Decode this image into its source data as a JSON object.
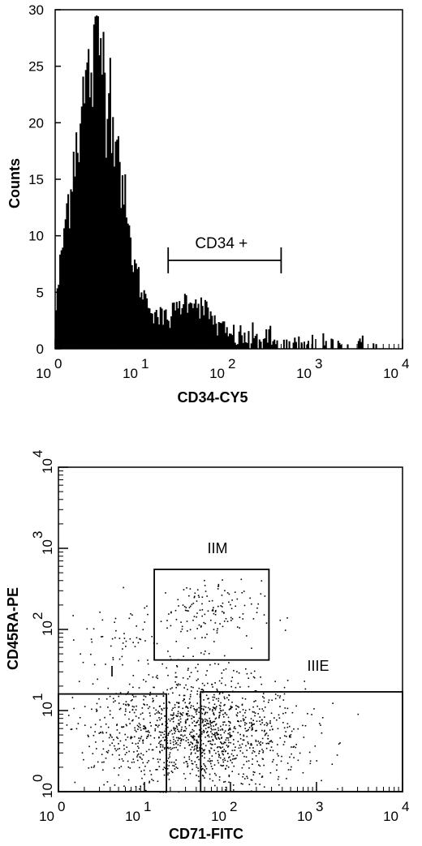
{
  "chart_data": [
    {
      "type": "histogram",
      "xlabel": "CD34-CY5",
      "ylabel": "Counts",
      "xscale": "log",
      "xlim": [
        1,
        10000
      ],
      "ylim": [
        0,
        30
      ],
      "xticks": [
        {
          "base": "10",
          "exp": "0"
        },
        {
          "base": "10",
          "exp": "1"
        },
        {
          "base": "10",
          "exp": "2"
        },
        {
          "base": "10",
          "exp": "3"
        },
        {
          "base": "10",
          "exp": "4"
        }
      ],
      "yticks": [
        "0",
        "5",
        "10",
        "15",
        "20",
        "25",
        "30"
      ],
      "histogram_profile": [
        {
          "x": 1.0,
          "y": 3
        },
        {
          "x": 1.2,
          "y": 9
        },
        {
          "x": 1.45,
          "y": 14
        },
        {
          "x": 1.7,
          "y": 18
        },
        {
          "x": 2.0,
          "y": 21
        },
        {
          "x": 2.4,
          "y": 24
        },
        {
          "x": 2.8,
          "y": 25
        },
        {
          "x": 3.2,
          "y": 27
        },
        {
          "x": 3.6,
          "y": 26
        },
        {
          "x": 4.2,
          "y": 23
        },
        {
          "x": 5.0,
          "y": 20
        },
        {
          "x": 6.0,
          "y": 14
        },
        {
          "x": 7.0,
          "y": 10
        },
        {
          "x": 8.5,
          "y": 7
        },
        {
          "x": 10,
          "y": 5
        },
        {
          "x": 12,
          "y": 4
        },
        {
          "x": 15,
          "y": 3
        },
        {
          "x": 18,
          "y": 2.5
        },
        {
          "x": 22,
          "y": 3
        },
        {
          "x": 28,
          "y": 4
        },
        {
          "x": 35,
          "y": 4.5
        },
        {
          "x": 45,
          "y": 4
        },
        {
          "x": 60,
          "y": 3
        },
        {
          "x": 75,
          "y": 2
        },
        {
          "x": 100,
          "y": 1.2
        },
        {
          "x": 140,
          "y": 1
        },
        {
          "x": 200,
          "y": 0.8
        },
        {
          "x": 260,
          "y": 1
        },
        {
          "x": 330,
          "y": 0.6
        },
        {
          "x": 400,
          "y": 0.1
        },
        {
          "x": 10000,
          "y": 0
        }
      ],
      "gate": {
        "label": "CD34 +",
        "x_start": 20,
        "x_end": 400
      }
    },
    {
      "type": "scatter",
      "xlabel": "CD71-FITC",
      "ylabel": "CD45RA-PE",
      "xscale": "log",
      "yscale": "log",
      "xlim": [
        1,
        10000
      ],
      "ylim": [
        1,
        10000
      ],
      "xticks": [
        {
          "base": "10",
          "exp": "0"
        },
        {
          "base": "10",
          "exp": "1"
        },
        {
          "base": "10",
          "exp": "2"
        },
        {
          "base": "10",
          "exp": "3"
        },
        {
          "base": "10",
          "exp": "4"
        }
      ],
      "yticks": [
        {
          "base": "10",
          "exp": "0"
        },
        {
          "base": "10",
          "exp": "1"
        },
        {
          "base": "10",
          "exp": "2"
        },
        {
          "base": "10",
          "exp": "3"
        },
        {
          "base": "10",
          "exp": "4"
        }
      ],
      "gates": [
        {
          "label": "I",
          "x": [
            1,
            18
          ],
          "y": [
            1,
            16
          ]
        },
        {
          "label": "IIM",
          "x": [
            13,
            280
          ],
          "y": [
            42,
            550
          ]
        },
        {
          "label": "IIIE",
          "x": [
            45,
            10000
          ],
          "y": [
            1,
            17
          ]
        }
      ],
      "populations": [
        {
          "cx": 55,
          "cy": 5,
          "sx": 0.55,
          "sy": 0.33,
          "n": 1100
        },
        {
          "cx": 8,
          "cy": 6,
          "sx": 0.42,
          "sy": 0.33,
          "n": 240
        },
        {
          "cx": 45,
          "cy": 160,
          "sx": 0.35,
          "sy": 0.2,
          "n": 150
        },
        {
          "cx": 4.5,
          "cy": 80,
          "sx": 0.2,
          "sy": 0.15,
          "n": 40
        },
        {
          "cx": 45,
          "cy": 30,
          "sx": 0.35,
          "sy": 0.18,
          "n": 60
        }
      ]
    }
  ]
}
